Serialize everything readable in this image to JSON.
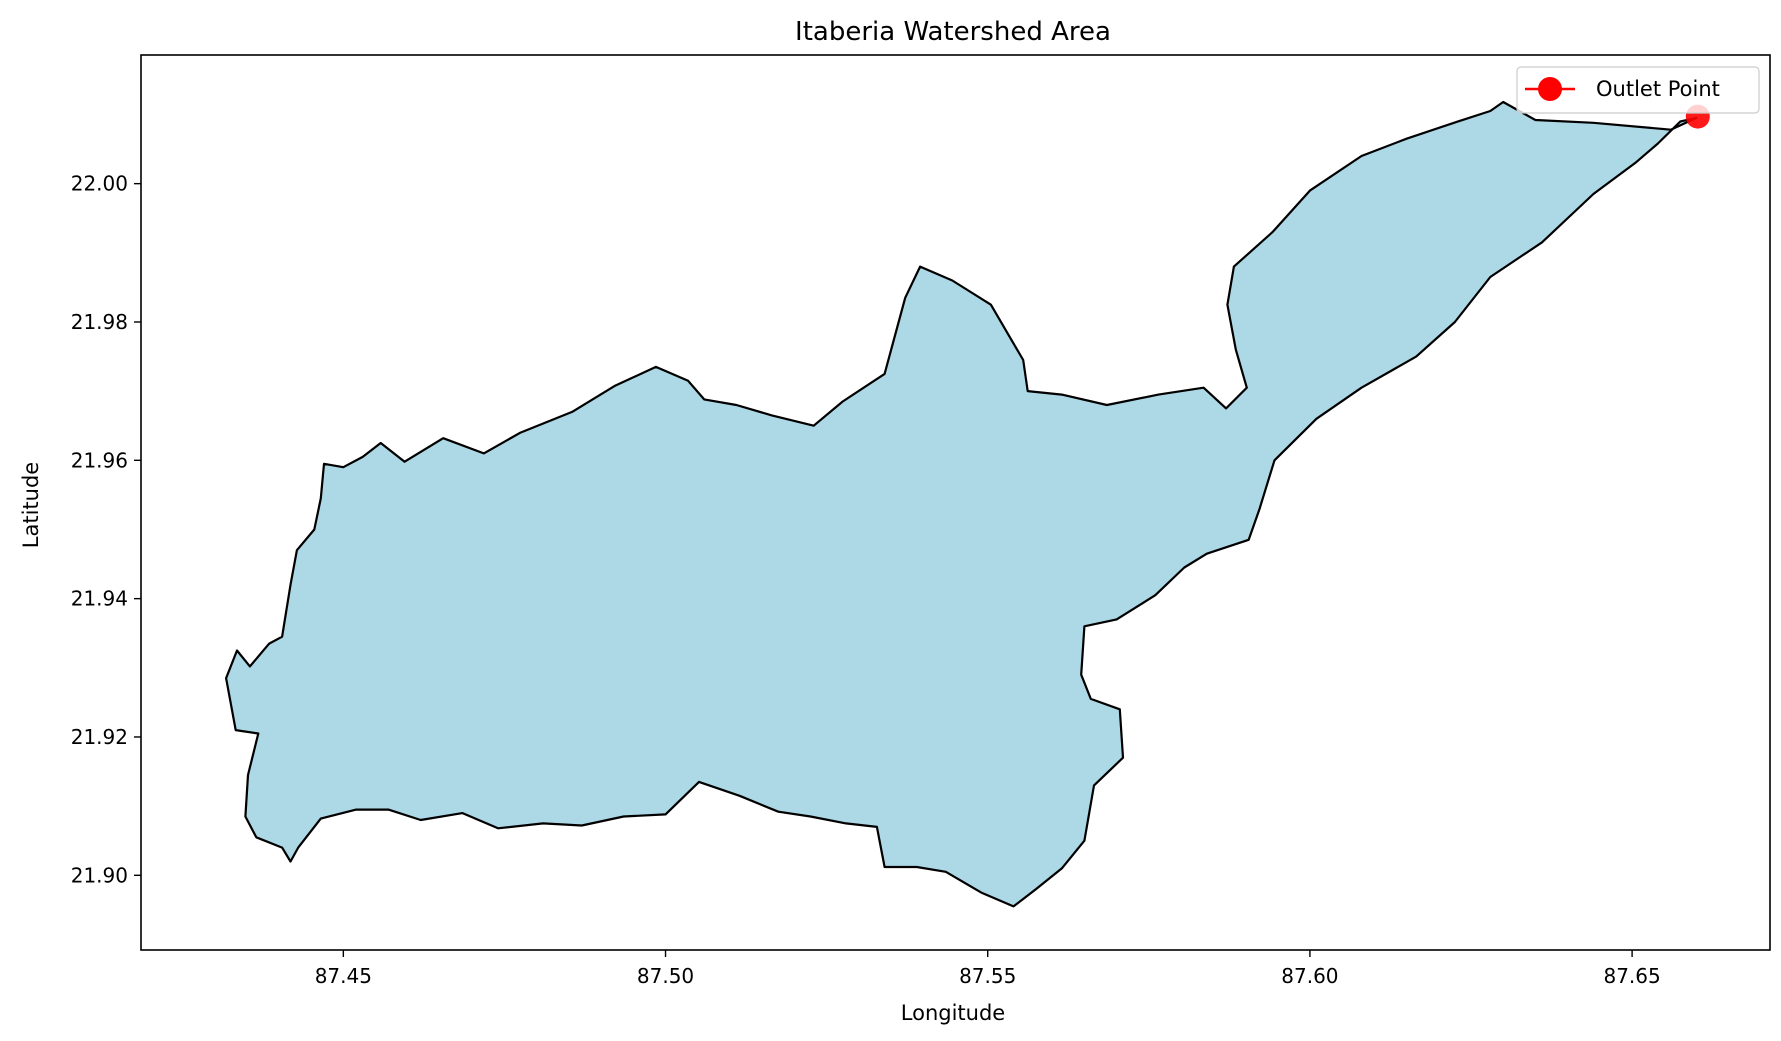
{
  "chart_data": {
    "type": "map",
    "title": "Itaberia Watershed Area",
    "xlabel": "Longitude",
    "ylabel": "Latitude",
    "xlim": [
      87.4186,
      87.6714
    ],
    "ylim": [
      21.8892,
      22.0186
    ],
    "xticks": [
      "87.45",
      "87.50",
      "87.55",
      "87.60",
      "87.65"
    ],
    "yticks": [
      "21.90",
      "21.92",
      "21.94",
      "21.96",
      "21.98",
      "22.00"
    ],
    "grid": false,
    "legend": {
      "position": "upper right",
      "entries": [
        "Outlet Point"
      ]
    },
    "colors": {
      "fill": "#add8e6",
      "edge": "#000000",
      "outlet": "#ff0000"
    },
    "series": [
      {
        "name": "Watershed",
        "kind": "polygon",
        "points": [
          [
            87.4318,
            21.9285
          ],
          [
            87.4335,
            21.9325
          ],
          [
            87.4355,
            21.9302
          ],
          [
            87.4385,
            21.9335
          ],
          [
            87.4405,
            21.9345
          ],
          [
            87.4418,
            21.942
          ],
          [
            87.4428,
            21.947
          ],
          [
            87.4455,
            21.95
          ],
          [
            87.4465,
            21.9545
          ],
          [
            87.447,
            21.9595
          ],
          [
            87.45,
            21.959
          ],
          [
            87.453,
            21.9605
          ],
          [
            87.4558,
            21.9625
          ],
          [
            87.4595,
            21.9598
          ],
          [
            87.4655,
            21.9632
          ],
          [
            87.4718,
            21.961
          ],
          [
            87.4775,
            21.964
          ],
          [
            87.4855,
            21.967
          ],
          [
            87.4922,
            21.9708
          ],
          [
            87.4985,
            21.9735
          ],
          [
            87.5035,
            21.9715
          ],
          [
            87.506,
            21.9688
          ],
          [
            87.511,
            21.968
          ],
          [
            87.5165,
            21.9665
          ],
          [
            87.523,
            21.965
          ],
          [
            87.5275,
            21.9685
          ],
          [
            87.534,
            21.9725
          ],
          [
            87.5372,
            21.9835
          ],
          [
            87.5395,
            21.988
          ],
          [
            87.5445,
            21.986
          ],
          [
            87.5505,
            21.9825
          ],
          [
            87.5555,
            21.9745
          ],
          [
            87.5562,
            21.97
          ],
          [
            87.5615,
            21.9695
          ],
          [
            87.5685,
            21.968
          ],
          [
            87.5765,
            21.9695
          ],
          [
            87.5835,
            21.9705
          ],
          [
            87.587,
            21.9675
          ],
          [
            87.5902,
            21.9705
          ],
          [
            87.5885,
            21.976
          ],
          [
            87.5872,
            21.9825
          ],
          [
            87.5882,
            21.988
          ],
          [
            87.5942,
            21.993
          ],
          [
            87.6,
            21.999
          ],
          [
            87.608,
            22.004
          ],
          [
            87.615,
            22.0065
          ],
          [
            87.623,
            22.009
          ],
          [
            87.628,
            22.0105
          ],
          [
            87.63,
            22.0118
          ],
          [
            87.635,
            22.0092
          ],
          [
            87.644,
            22.0088
          ],
          [
            87.656,
            22.0078
          ],
          [
            87.66,
            22.0095
          ],
          [
            87.6575,
            22.009
          ],
          [
            87.654,
            22.0058
          ],
          [
            87.6505,
            22.003
          ],
          [
            87.644,
            21.9985
          ],
          [
            87.636,
            21.9915
          ],
          [
            87.628,
            21.9865
          ],
          [
            87.6225,
            21.98
          ],
          [
            87.6165,
            21.975
          ],
          [
            87.608,
            21.9705
          ],
          [
            87.601,
            21.966
          ],
          [
            87.5945,
            21.96
          ],
          [
            87.5922,
            21.953
          ],
          [
            87.5905,
            21.9485
          ],
          [
            87.584,
            21.9465
          ],
          [
            87.5805,
            21.9445
          ],
          [
            87.576,
            21.9405
          ],
          [
            87.57,
            21.937
          ],
          [
            87.565,
            21.936
          ],
          [
            87.5645,
            21.929
          ],
          [
            87.566,
            21.9255
          ],
          [
            87.5705,
            21.924
          ],
          [
            87.571,
            21.917
          ],
          [
            87.5665,
            21.913
          ],
          [
            87.565,
            21.905
          ],
          [
            87.5615,
            21.901
          ],
          [
            87.5575,
            21.898
          ],
          [
            87.554,
            21.8955
          ],
          [
            87.549,
            21.8975
          ],
          [
            87.5435,
            21.9005
          ],
          [
            87.539,
            21.9012
          ],
          [
            87.534,
            21.9012
          ],
          [
            87.5328,
            21.907
          ],
          [
            87.528,
            21.9075
          ],
          [
            87.5225,
            21.9085
          ],
          [
            87.5175,
            21.9092
          ],
          [
            87.5115,
            21.9115
          ],
          [
            87.5052,
            21.9135
          ],
          [
            87.5,
            21.9088
          ],
          [
            87.4935,
            21.9085
          ],
          [
            87.487,
            21.9072
          ],
          [
            87.481,
            21.9075
          ],
          [
            87.474,
            21.9068
          ],
          [
            87.4685,
            21.909
          ],
          [
            87.462,
            21.908
          ],
          [
            87.457,
            21.9095
          ],
          [
            87.452,
            21.9095
          ],
          [
            87.4465,
            21.9082
          ],
          [
            87.443,
            21.904
          ],
          [
            87.4418,
            21.902
          ],
          [
            87.4405,
            21.904
          ],
          [
            87.4365,
            21.9055
          ],
          [
            87.4348,
            21.9085
          ],
          [
            87.4352,
            21.9145
          ],
          [
            87.4368,
            21.9205
          ],
          [
            87.4333,
            21.921
          ],
          [
            87.4318,
            21.9285
          ]
        ]
      },
      {
        "name": "Outlet Point",
        "kind": "point",
        "x": 87.6602,
        "y": 22.0097
      }
    ]
  }
}
